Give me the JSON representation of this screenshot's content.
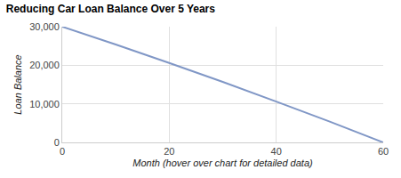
{
  "chart_data": {
    "type": "line",
    "title": "Reducing Car Loan Balance Over 5 Years",
    "x_label": "Month (hover over chart for detailed data)",
    "y_label": "Loan Balance",
    "x": [
      0,
      10,
      20,
      30,
      40,
      50,
      60
    ],
    "values": [
      30000,
      25400,
      20600,
      15700,
      10600,
      5400,
      0
    ],
    "color": "#8097c6",
    "xlim": [
      0,
      60
    ],
    "xticks": [
      0,
      20,
      40,
      60
    ],
    "ylim": [
      0,
      30000
    ],
    "yticks": [
      0,
      {
        "value": 10000,
        "label": "10,000"
      },
      {
        "value": 20000,
        "label": "20,000"
      },
      {
        "value": 30000,
        "label": "30,000"
      }
    ],
    "grid": true
  }
}
